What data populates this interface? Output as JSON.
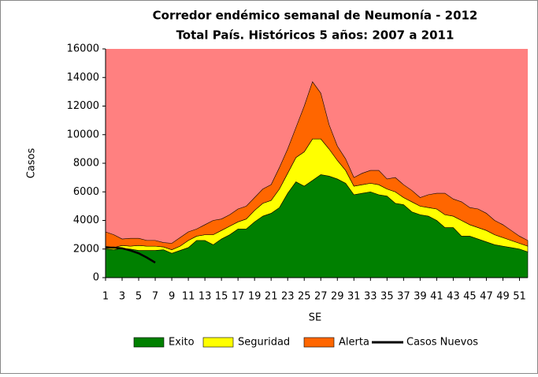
{
  "chart_data": {
    "type": "stacked-area",
    "title": "Corredor endémico semanal de Neumonía - 2012",
    "subtitle": "Total País. Históricos 5 años: 2007 a 2011",
    "y_label": "Casos",
    "x_label": "SE",
    "x": [
      1,
      2,
      3,
      4,
      5,
      6,
      7,
      8,
      9,
      10,
      11,
      12,
      13,
      14,
      15,
      16,
      17,
      18,
      19,
      20,
      21,
      22,
      23,
      24,
      25,
      26,
      27,
      28,
      29,
      30,
      31,
      32,
      33,
      34,
      35,
      36,
      37,
      38,
      39,
      40,
      41,
      42,
      43,
      44,
      45,
      46,
      47,
      48,
      49,
      50,
      51,
      52
    ],
    "xlim": [
      1,
      52
    ],
    "xticks": [
      1,
      3,
      5,
      7,
      9,
      11,
      13,
      15,
      17,
      19,
      21,
      23,
      25,
      27,
      29,
      31,
      33,
      35,
      37,
      39,
      41,
      43,
      45,
      47,
      49,
      51
    ],
    "ylim": [
      0,
      16000
    ],
    "yticks": [
      0,
      2000,
      4000,
      6000,
      8000,
      10000,
      12000,
      14000,
      16000
    ],
    "background_color": "#ff8080",
    "series": [
      {
        "name": "Exito",
        "color": "#008000",
        "values": [
          2000,
          1950,
          2050,
          2000,
          1900,
          1900,
          1900,
          1950,
          1700,
          1900,
          2100,
          2600,
          2600,
          2300,
          2700,
          3000,
          3400,
          3400,
          3900,
          4300,
          4500,
          4900,
          5900,
          6700,
          6400,
          6800,
          7200,
          7100,
          6900,
          6600,
          5800,
          5900,
          6000,
          5800,
          5700,
          5200,
          5100,
          4600,
          4400,
          4300,
          4000,
          3500,
          3500,
          2900,
          2900,
          2700,
          2500,
          2300,
          2200,
          2100,
          2000,
          1800
        ]
      },
      {
        "name": "Seguridad",
        "color": "#ffff00",
        "values": [
          200,
          150,
          200,
          200,
          350,
          300,
          300,
          200,
          250,
          300,
          500,
          300,
          400,
          700,
          600,
          600,
          500,
          700,
          800,
          900,
          900,
          1300,
          1400,
          1700,
          2400,
          2900,
          2500,
          1900,
          1300,
          900,
          600,
          600,
          600,
          700,
          500,
          800,
          500,
          700,
          600,
          600,
          800,
          900,
          800,
          1100,
          800,
          800,
          800,
          700,
          600,
          500,
          400,
          400
        ]
      },
      {
        "name": "Alerta",
        "color": "#ff6600",
        "values": [
          1000,
          900,
          450,
          550,
          500,
          400,
          400,
          300,
          450,
          600,
          600,
          500,
          700,
          1000,
          800,
          800,
          900,
          900,
          900,
          1000,
          1100,
          1500,
          1700,
          2100,
          3200,
          4000,
          3200,
          1700,
          1000,
          800,
          600,
          800,
          900,
          1000,
          700,
          1000,
          900,
          800,
          600,
          900,
          1100,
          1500,
          1200,
          1300,
          1200,
          1300,
          1200,
          1000,
          900,
          700,
          500,
          400
        ]
      },
      {
        "name": "Casos Nuevos",
        "color": "#000000",
        "line": true,
        "values": [
          2100,
          2100,
          2050,
          1900,
          1700,
          1400,
          1050,
          null,
          null,
          null,
          null,
          null,
          null,
          null,
          null,
          null,
          null,
          null,
          null,
          null,
          null,
          null,
          null,
          null,
          null,
          null,
          null,
          null,
          null,
          null,
          null,
          null,
          null,
          null,
          null,
          null,
          null,
          null,
          null,
          null,
          null,
          null,
          null,
          null,
          null,
          null,
          null,
          null,
          null,
          null,
          null,
          null
        ]
      }
    ]
  }
}
